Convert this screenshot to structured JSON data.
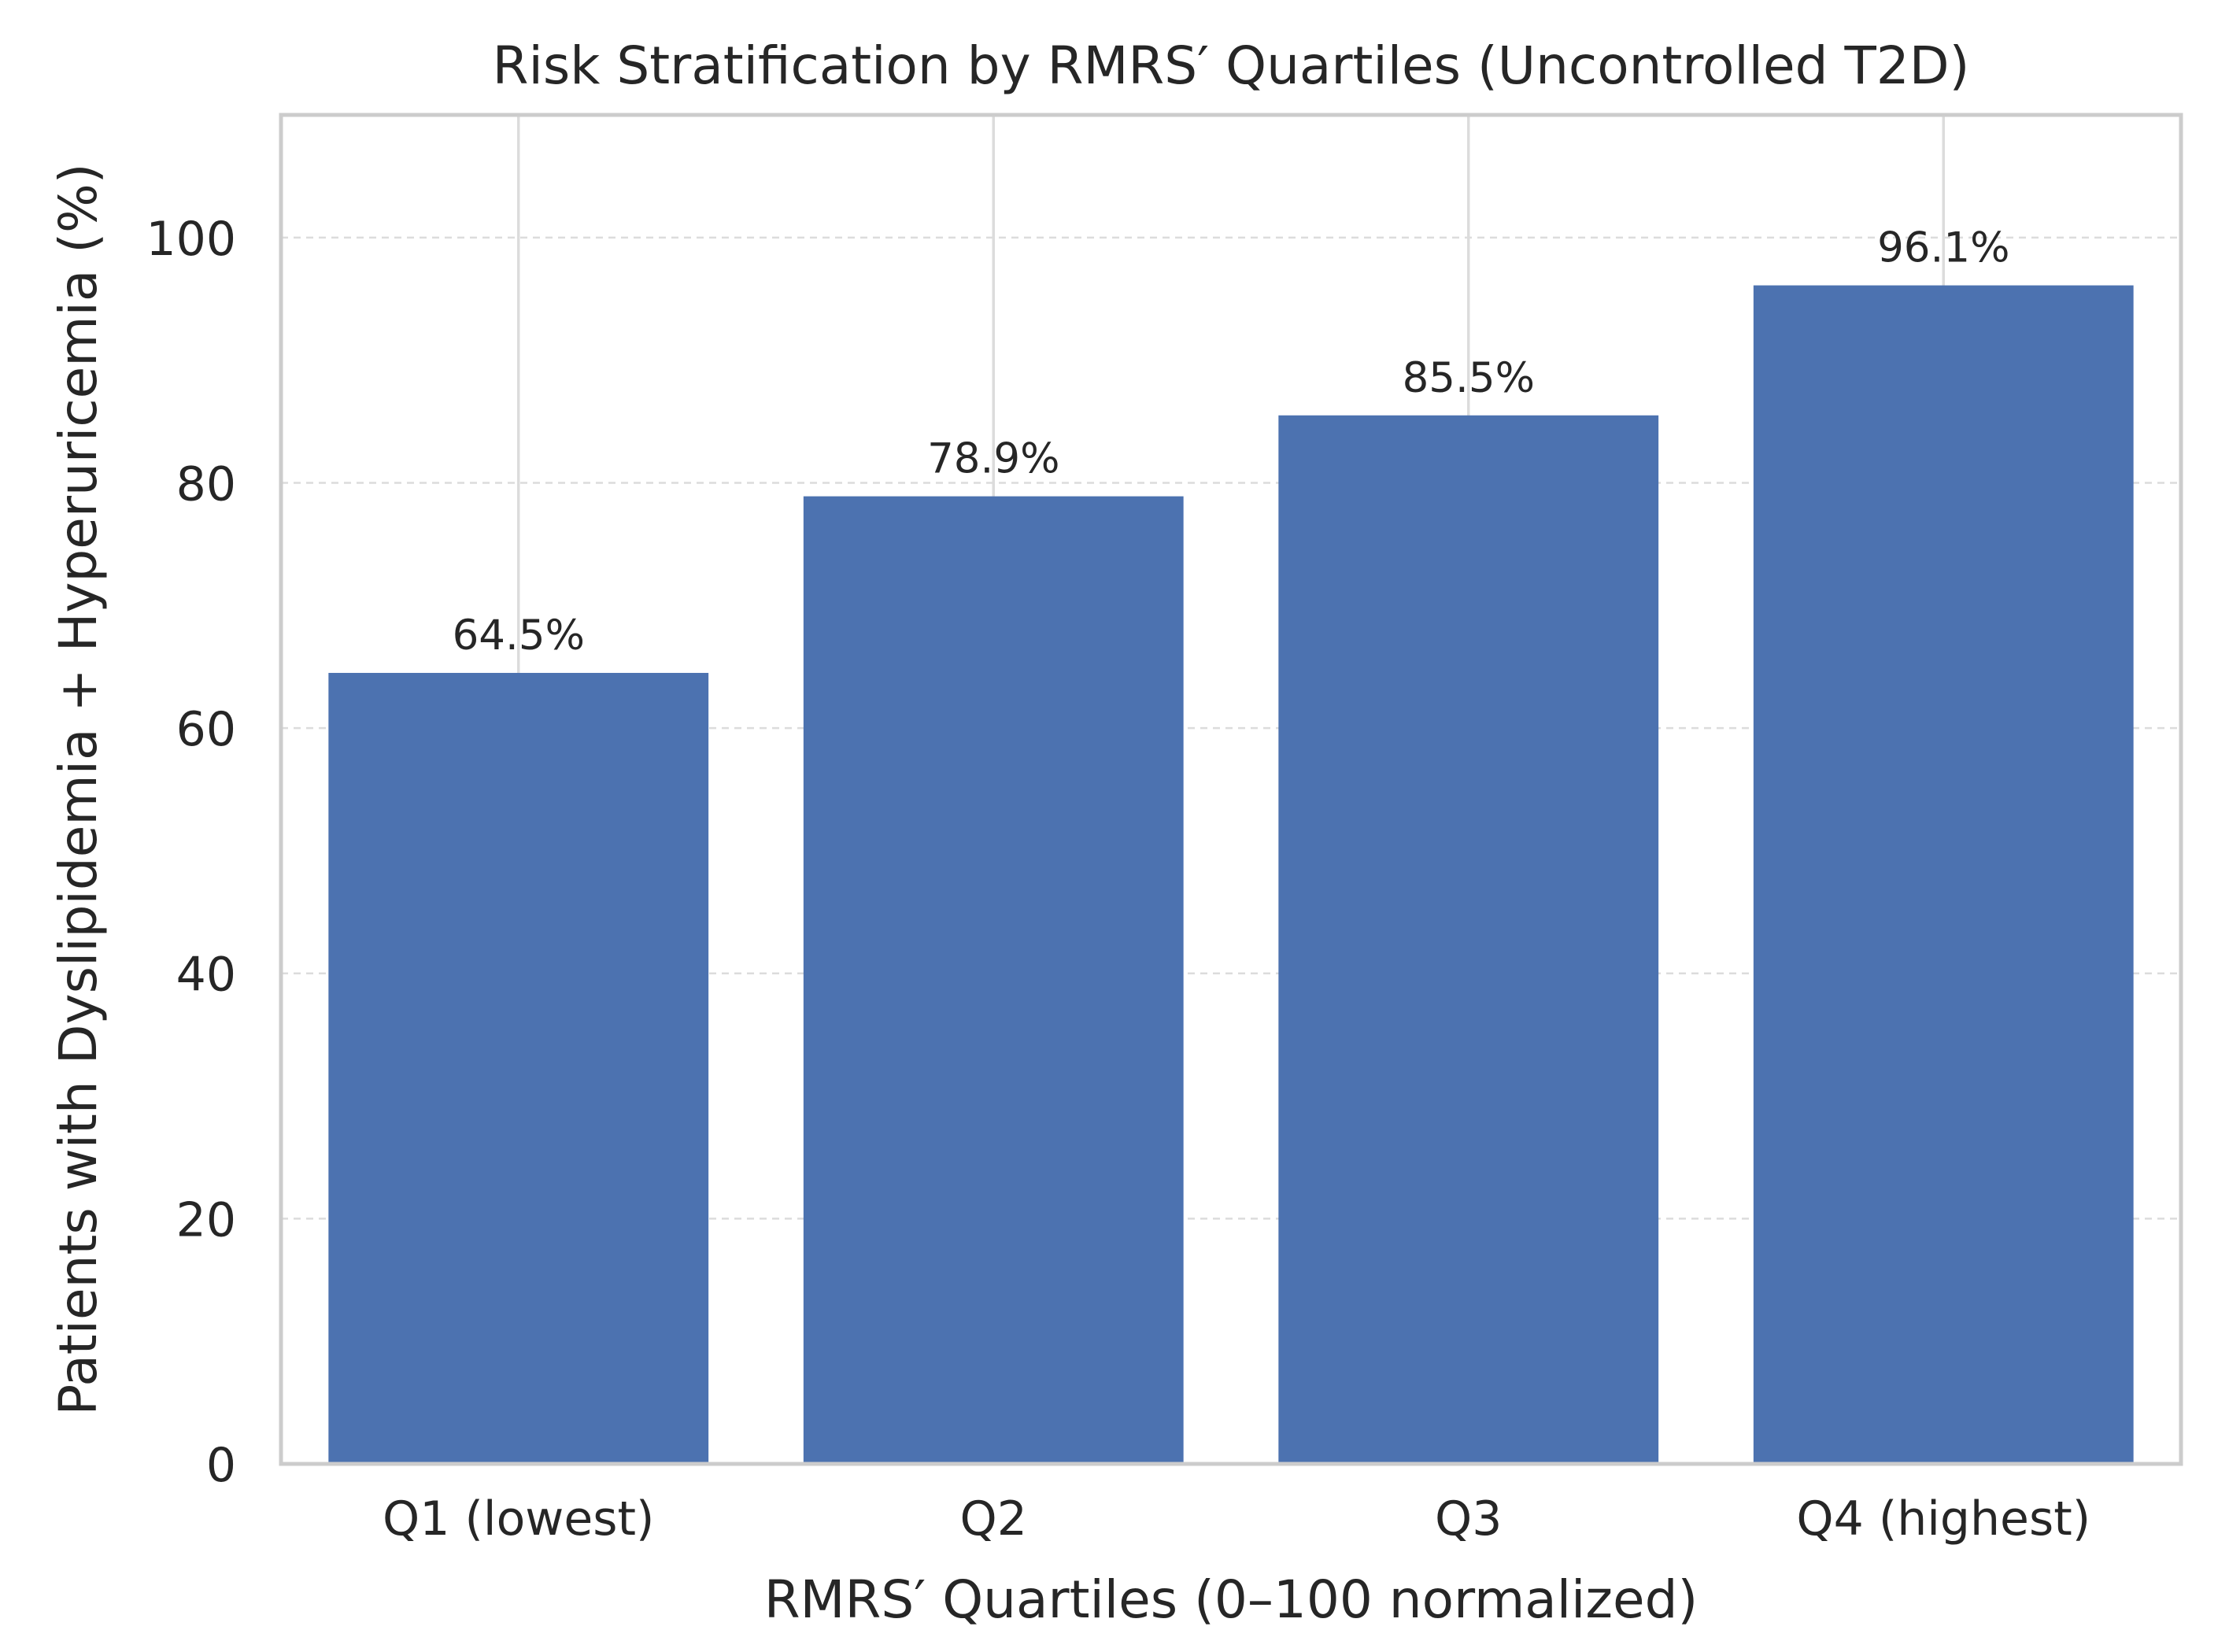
{
  "chart_data": {
    "type": "bar",
    "title": "Risk Stratification by RMRS′ Quartiles (Uncontrolled T2D)",
    "xlabel": "RMRS′ Quartiles (0–100 normalized)",
    "ylabel": "Patients with Dyslipidemia + Hyperuricemia (%)",
    "categories": [
      "Q1 (lowest)",
      "Q2",
      "Q3",
      "Q4 (highest)"
    ],
    "values": [
      64.5,
      78.9,
      85.5,
      96.1
    ],
    "data_labels": [
      "64.5%",
      "78.9%",
      "85.5%",
      "96.1%"
    ],
    "ylim": [
      0,
      110
    ],
    "yticks": [
      0,
      20,
      40,
      60,
      80,
      100
    ],
    "ytick_labels": [
      "0",
      "20",
      "40",
      "60",
      "80",
      "100"
    ],
    "grid": "y-dashed",
    "bar_color": "#4c72b0",
    "legend": "none"
  }
}
